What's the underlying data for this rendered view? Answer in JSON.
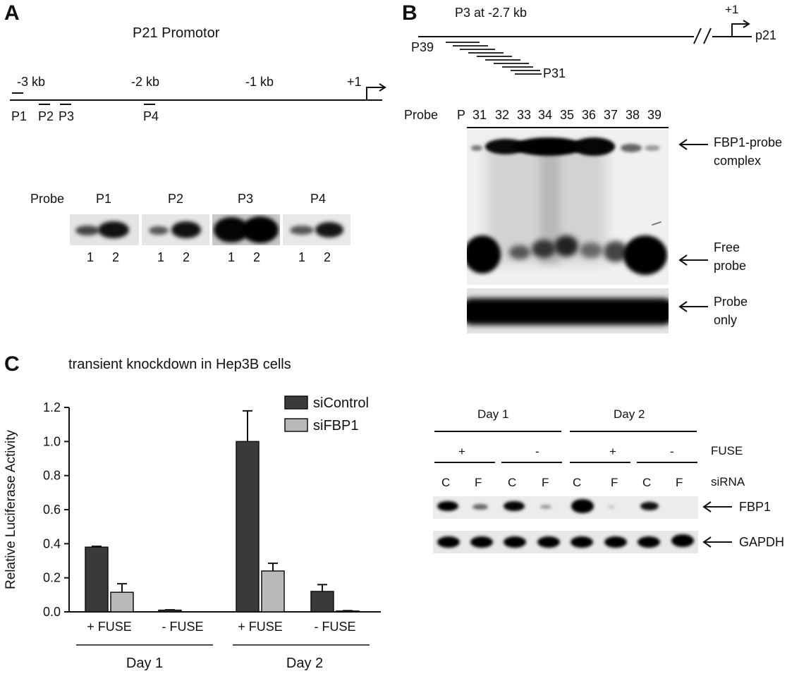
{
  "panels": [
    "A",
    "B",
    "C"
  ],
  "panelA": {
    "title": "P21 Promotor",
    "kb_labels": [
      "-3 kb",
      "-2 kb",
      "-1 kb",
      "+1"
    ],
    "probe_sites": [
      "P1",
      "P2",
      "P3",
      "P4"
    ],
    "probe_label": "Probe",
    "gel_probes": [
      "P1",
      "P2",
      "P3",
      "P4"
    ],
    "lane_numbers": [
      "1",
      "2"
    ]
  },
  "panelB": {
    "map_label": "P3 at -2.7 kb",
    "tss": "+1",
    "gene": "p21",
    "probe_start": "P39",
    "probe_end": "P31",
    "probe_label": "Probe",
    "lanes": [
      "P",
      "31",
      "32",
      "33",
      "34",
      "35",
      "36",
      "37",
      "38",
      "39"
    ],
    "annotations": {
      "complex_1": "FBP1-probe",
      "complex_2": "complex",
      "free_1": "Free",
      "free_2": "probe",
      "only_1": "Probe",
      "only_2": "only"
    }
  },
  "panelC": {
    "title": "transient knockdown in Hep3B cells",
    "chart_data": {
      "type": "bar",
      "title": "transient knockdown in Hep3B cells",
      "ylabel": "Relative Luciferase Activity",
      "ylim": [
        0,
        1.2
      ],
      "yticks": [
        "0.0",
        "0.2",
        "0.4",
        "0.6",
        "0.8",
        "1.0",
        "1.2"
      ],
      "categories": [
        "+ FUSE",
        "- FUSE",
        "+ FUSE",
        "- FUSE"
      ],
      "groups": [
        "Day 1",
        "Day 2"
      ],
      "series": [
        {
          "name": "siControl",
          "color": "#3a3a3a",
          "values": [
            0.38,
            0.01,
            1.0,
            0.12
          ],
          "errors": [
            0.005,
            0.002,
            0.18,
            0.04
          ]
        },
        {
          "name": "siFBP1",
          "color": "#b9b9b9",
          "values": [
            0.115,
            0.0,
            0.24,
            0.005
          ],
          "errors": [
            0.05,
            0.0,
            0.045,
            0.002
          ]
        }
      ]
    },
    "western": {
      "days": [
        "Day 1",
        "Day 2"
      ],
      "fuse": [
        "+",
        "-",
        "+",
        "-"
      ],
      "fuse_label": "FUSE",
      "sirna": [
        "C",
        "F",
        "C",
        "F",
        "C",
        "F",
        "C",
        "F"
      ],
      "sirna_label": "siRNA",
      "rows": [
        "FBP1",
        "GAPDH"
      ]
    }
  }
}
